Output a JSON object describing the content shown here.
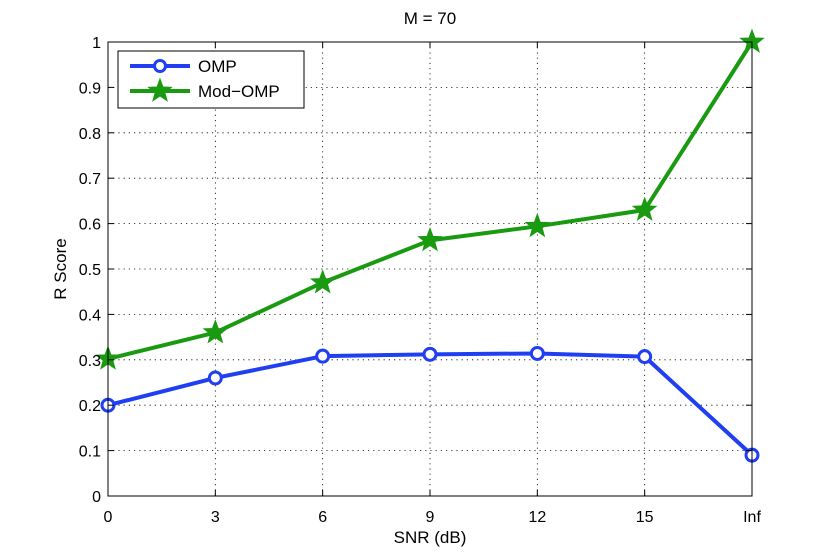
{
  "chart_data": {
    "type": "line",
    "title": "M = 70",
    "xlabel": "SNR (dB)",
    "ylabel": "R Score",
    "categories": [
      "0",
      "3",
      "6",
      "9",
      "12",
      "15",
      "Inf"
    ],
    "ylim": [
      0,
      1
    ],
    "yticks": [
      "0",
      "0.1",
      "0.2",
      "0.3",
      "0.4",
      "0.5",
      "0.6",
      "0.7",
      "0.8",
      "0.9",
      "1"
    ],
    "grid": true,
    "legend_position": "top-left",
    "series": [
      {
        "name": "OMP",
        "color": "#1f3ff0",
        "marker": "circle",
        "values": [
          0.2,
          0.26,
          0.308,
          0.312,
          0.314,
          0.307,
          0.09
        ]
      },
      {
        "name": "Mod−OMP",
        "color": "#1a9a10",
        "marker": "star",
        "values": [
          0.302,
          0.36,
          0.47,
          0.563,
          0.594,
          0.63,
          1.0
        ]
      }
    ]
  }
}
